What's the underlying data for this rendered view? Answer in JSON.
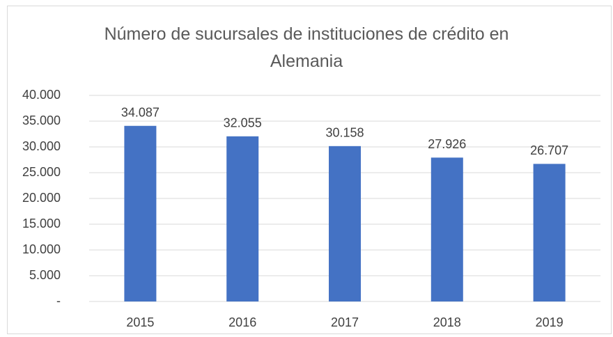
{
  "chart_data": {
    "type": "bar",
    "title": "Número de sucursales de instituciones de crédito en Alemania",
    "categories": [
      "2015",
      "2016",
      "2017",
      "2018",
      "2019"
    ],
    "values": [
      34087,
      32055,
      30158,
      27926,
      26707
    ],
    "value_labels": [
      "34.087",
      "32.055",
      "30.158",
      "27.926",
      "26.707"
    ],
    "color": "#4472c4",
    "ylim": [
      0,
      40000
    ],
    "yticks": [
      {
        "value": 0,
        "label": "-"
      },
      {
        "value": 5000,
        "label": "5.000"
      },
      {
        "value": 10000,
        "label": "10.000"
      },
      {
        "value": 15000,
        "label": "15.000"
      },
      {
        "value": 20000,
        "label": "20.000"
      },
      {
        "value": 25000,
        "label": "25.000"
      },
      {
        "value": 30000,
        "label": "30.000"
      },
      {
        "value": 35000,
        "label": "35.000"
      },
      {
        "value": 40000,
        "label": "40.000"
      }
    ],
    "grid": true
  }
}
